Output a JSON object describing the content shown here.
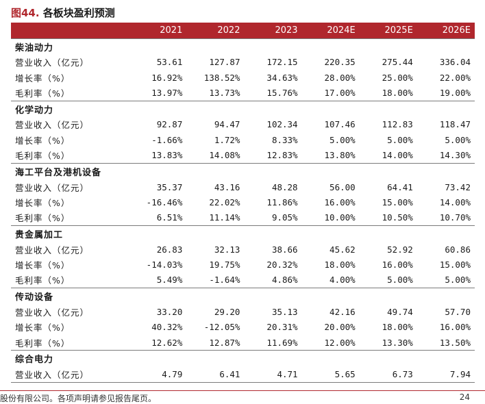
{
  "figure": {
    "title_prefix": "图44.",
    "title_text": " 各板块盈利预测"
  },
  "table": {
    "header": [
      "",
      "2021",
      "2022",
      "2023",
      "2024E",
      "2025E",
      "2026E"
    ],
    "sections": [
      {
        "name": "柴油动力",
        "rows": [
          {
            "label": "营业收入（亿元）",
            "values": [
              "53.61",
              "127.87",
              "172.15",
              "220.35",
              "275.44",
              "336.04"
            ]
          },
          {
            "label": "增长率（%）",
            "values": [
              "16.92%",
              "138.52%",
              "34.63%",
              "28.00%",
              "25.00%",
              "22.00%"
            ]
          },
          {
            "label": "毛利率（%）",
            "values": [
              "13.97%",
              "13.73%",
              "15.76%",
              "17.00%",
              "18.00%",
              "19.00%"
            ]
          }
        ]
      },
      {
        "name": "化学动力",
        "rows": [
          {
            "label": "营业收入（亿元）",
            "values": [
              "92.87",
              "94.47",
              "102.34",
              "107.46",
              "112.83",
              "118.47"
            ]
          },
          {
            "label": "增长率（%）",
            "values": [
              "-1.66%",
              "1.72%",
              "8.33%",
              "5.00%",
              "5.00%",
              "5.00%"
            ]
          },
          {
            "label": "毛利率（%）",
            "values": [
              "13.83%",
              "14.08%",
              "12.83%",
              "13.80%",
              "14.00%",
              "14.30%"
            ]
          }
        ]
      },
      {
        "name": "海工平台及港机设备",
        "rows": [
          {
            "label": "营业收入（亿元）",
            "values": [
              "35.37",
              "43.16",
              "48.28",
              "56.00",
              "64.41",
              "73.42"
            ]
          },
          {
            "label": "增长率（%）",
            "values": [
              "-16.46%",
              "22.02%",
              "11.86%",
              "16.00%",
              "15.00%",
              "14.00%"
            ]
          },
          {
            "label": "毛利率（%）",
            "values": [
              "6.51%",
              "11.14%",
              "9.05%",
              "10.00%",
              "10.50%",
              "10.70%"
            ]
          }
        ]
      },
      {
        "name": "贵金属加工",
        "rows": [
          {
            "label": "营业收入（亿元）",
            "values": [
              "26.83",
              "32.13",
              "38.66",
              "45.62",
              "52.92",
              "60.86"
            ]
          },
          {
            "label": "增长率（%）",
            "values": [
              "-14.03%",
              "19.75%",
              "20.32%",
              "18.00%",
              "16.00%",
              "15.00%"
            ]
          },
          {
            "label": "毛利率（%）",
            "values": [
              "5.49%",
              "-1.64%",
              "4.86%",
              "4.00%",
              "5.00%",
              "5.00%"
            ]
          }
        ]
      },
      {
        "name": "传动设备",
        "rows": [
          {
            "label": "营业收入（亿元）",
            "values": [
              "33.20",
              "29.20",
              "35.13",
              "42.16",
              "49.74",
              "57.70"
            ]
          },
          {
            "label": "增长率（%）",
            "values": [
              "40.32%",
              "-12.05%",
              "20.31%",
              "20.00%",
              "18.00%",
              "16.00%"
            ]
          },
          {
            "label": "毛利率（%）",
            "values": [
              "12.62%",
              "12.87%",
              "11.69%",
              "12.00%",
              "13.30%",
              "13.50%"
            ]
          }
        ]
      },
      {
        "name": "综合电力",
        "rows": [
          {
            "label": "营业收入（亿元）",
            "values": [
              "4.79",
              "6.41",
              "4.71",
              "5.65",
              "6.73",
              "7.94"
            ]
          }
        ]
      }
    ]
  },
  "footer": {
    "text": "股份有限公司。各项声明请参见报告尾页。",
    "page_number": "24"
  }
}
